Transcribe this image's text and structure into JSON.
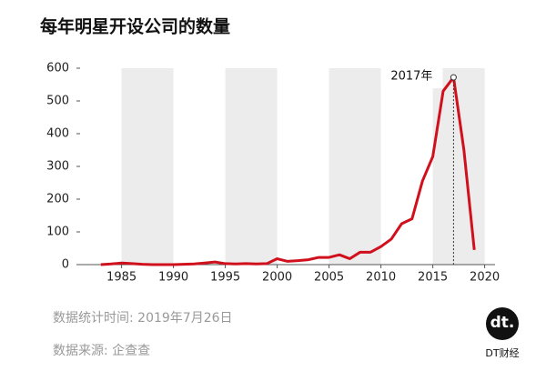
{
  "chart_data": {
    "type": "line",
    "title": "每年明星开设公司的数量",
    "x": [
      1983,
      1984,
      1985,
      1986,
      1987,
      1988,
      1989,
      1990,
      1991,
      1992,
      1993,
      1994,
      1995,
      1996,
      1997,
      1998,
      1999,
      2000,
      2001,
      2002,
      2003,
      2004,
      2005,
      2006,
      2007,
      2008,
      2009,
      2010,
      2011,
      2012,
      2013,
      2014,
      2015,
      2016,
      2017,
      2018,
      2019
    ],
    "values": [
      0,
      2,
      5,
      3,
      1,
      0,
      0,
      0,
      1,
      2,
      5,
      8,
      3,
      2,
      3,
      2,
      3,
      18,
      10,
      12,
      15,
      22,
      22,
      30,
      18,
      38,
      38,
      55,
      78,
      125,
      140,
      255,
      330,
      530,
      572,
      350,
      45
    ],
    "color": "#d0101c",
    "xlim": [
      1981,
      2021
    ],
    "xticks": [
      1985,
      1990,
      1995,
      2000,
      2005,
      2010,
      2015,
      2020
    ],
    "ylim": [
      0,
      600
    ],
    "yticks": [
      0,
      100,
      200,
      300,
      400,
      500,
      600
    ],
    "annotation": {
      "text": "2017年",
      "x": 2017,
      "y": 572
    }
  },
  "footer": {
    "date_note": "数据统计时间: 2019年7月26日",
    "source": "数据来源: 企查查"
  },
  "logo": {
    "mark": "dt.",
    "name": "DT财经"
  }
}
